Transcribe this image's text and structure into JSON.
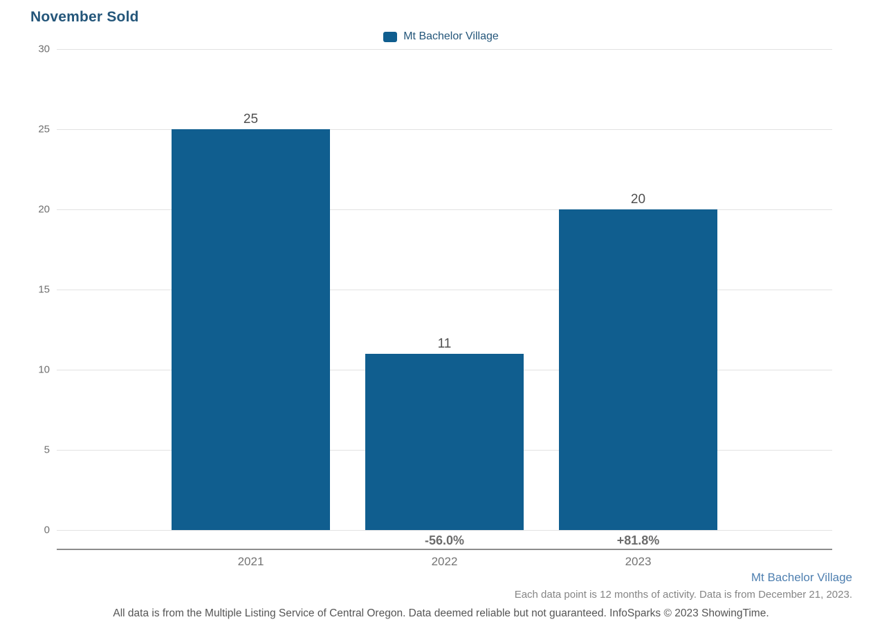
{
  "title": "November Sold",
  "legend": {
    "label": "Mt Bachelor Village"
  },
  "chart_data": {
    "type": "bar",
    "title": "November Sold",
    "series_name": "Mt Bachelor Village",
    "categories": [
      "2021",
      "2022",
      "2023"
    ],
    "values": [
      25,
      11,
      20
    ],
    "bar_value_labels": [
      "25",
      "11",
      "20"
    ],
    "pct_change_labels": [
      "",
      "-56.0%",
      "+81.8%"
    ],
    "xlabel": "",
    "ylabel": "",
    "ylim": [
      0,
      30
    ],
    "yticks": [
      0,
      5,
      10,
      15,
      20,
      25,
      30
    ],
    "grid": true,
    "legend_position": "top-center"
  },
  "footer": {
    "series_label": "Mt Bachelor Village",
    "data_note": "Each data point is 12 months of activity. Data is from December 21, 2023.",
    "disclaimer": "All data is from the Multiple Listing Service of Central Oregon. Data deemed reliable but not guaranteed. InfoSparks © 2023 ShowingTime."
  },
  "colors": {
    "bar": "#105E8F",
    "title": "#24567A",
    "legend_label": "#24567A",
    "footer_series_label": "#4E7FB0",
    "gridline": "#E2E2E2",
    "axis_line": "#8C8C8C"
  }
}
